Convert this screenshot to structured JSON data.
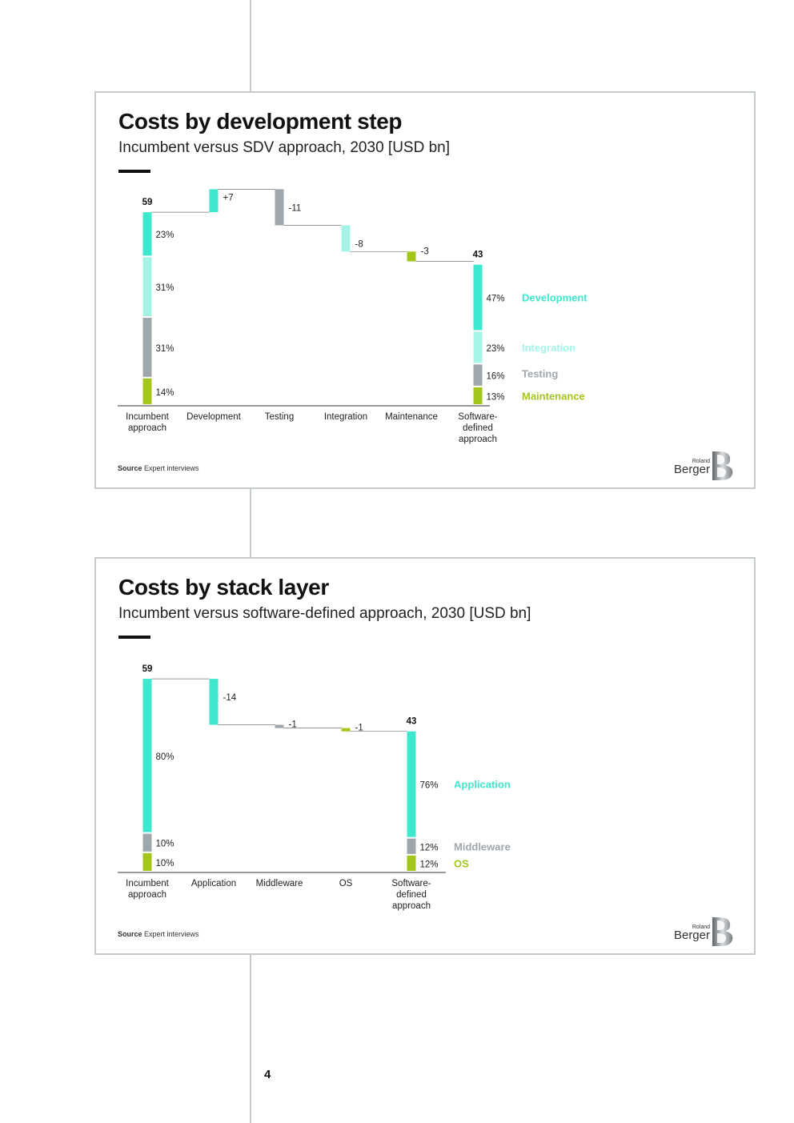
{
  "page": {
    "number": "4"
  },
  "charts": [
    {
      "title": "Costs by development step",
      "subtitle": "Incumbent versus SDV approach, 2030 [USD bn]",
      "source_label": "Source",
      "source_text": "Expert interviews",
      "logo": {
        "line1": "Roland",
        "line2": "Berger"
      }
    },
    {
      "title": "Costs by stack layer",
      "subtitle": "Incumbent versus software-defined approach, 2030 [USD bn]",
      "source_label": "Source",
      "source_text": "Expert interviews",
      "logo": {
        "line1": "Roland",
        "line2": "Berger"
      }
    }
  ],
  "chart_data": [
    {
      "type": "bar",
      "subtype": "waterfall",
      "title": "Costs by development step",
      "subtitle": "Incumbent versus SDV approach, 2030 [USD bn]",
      "ylim": [
        0,
        65
      ],
      "grid": false,
      "legend_position": "right",
      "categories": [
        "Incumbent approach",
        "Development",
        "Testing",
        "Integration",
        "Maintenance",
        "Software-defined approach"
      ],
      "category_labels": [
        [
          "Incumbent",
          "approach"
        ],
        [
          "Development"
        ],
        [
          "Testing"
        ],
        [
          "Integration"
        ],
        [
          "Maintenance"
        ],
        [
          "Software-",
          "defined",
          "approach"
        ]
      ],
      "totals": [
        {
          "category": "Incumbent approach",
          "value": 59,
          "label": "59",
          "segments": [
            {
              "series": "Development",
              "share": 23,
              "label": "23%"
            },
            {
              "series": "Integration",
              "share": 31,
              "label": "31%"
            },
            {
              "series": "Testing",
              "share": 31,
              "label": "31%"
            },
            {
              "series": "Maintenance",
              "share": 14,
              "label": "14%"
            }
          ]
        },
        {
          "category": "Software-defined approach",
          "value": 43,
          "label": "43",
          "segments": [
            {
              "series": "Development",
              "share": 47,
              "label": "47%"
            },
            {
              "series": "Integration",
              "share": 23,
              "label": "23%"
            },
            {
              "series": "Testing",
              "share": 16,
              "label": "16%"
            },
            {
              "series": "Maintenance",
              "share": 13,
              "label": "13%"
            }
          ]
        }
      ],
      "deltas": [
        {
          "category": "Development",
          "series": "Development",
          "value": 7,
          "label": "+7"
        },
        {
          "category": "Testing",
          "series": "Testing",
          "value": -11,
          "label": "-11"
        },
        {
          "category": "Integration",
          "series": "Integration",
          "value": -8,
          "label": "-8"
        },
        {
          "category": "Maintenance",
          "series": "Maintenance",
          "value": -3,
          "label": "-3"
        }
      ],
      "series": [
        {
          "name": "Development",
          "color": "#3ee8cf",
          "legend_color": "#3ee8cf"
        },
        {
          "name": "Integration",
          "color": "#a6f3e8",
          "legend_color": "#a6f3e8"
        },
        {
          "name": "Testing",
          "color": "#9ea7ac",
          "legend_color": "#9ea7ac"
        },
        {
          "name": "Maintenance",
          "color": "#a2c61c",
          "legend_color": "#a2c61c"
        }
      ]
    },
    {
      "type": "bar",
      "subtype": "waterfall",
      "title": "Costs by stack layer",
      "subtitle": "Incumbent versus software-defined approach, 2030 [USD bn]",
      "ylim": [
        0,
        65
      ],
      "grid": false,
      "legend_position": "right",
      "categories": [
        "Incumbent approach",
        "Application",
        "Middleware",
        "OS",
        "Software-defined approach"
      ],
      "category_labels": [
        [
          "Incumbent",
          "approach"
        ],
        [
          "Application"
        ],
        [
          "Middleware"
        ],
        [
          "OS"
        ],
        [
          "Software-",
          "defined",
          "approach"
        ]
      ],
      "totals": [
        {
          "category": "Incumbent approach",
          "value": 59,
          "label": "59",
          "segments": [
            {
              "series": "Application",
              "share": 80,
              "label": "80%"
            },
            {
              "series": "Middleware",
              "share": 10,
              "label": "10%"
            },
            {
              "series": "OS",
              "share": 10,
              "label": "10%"
            }
          ]
        },
        {
          "category": "Software-defined approach",
          "value": 43,
          "label": "43",
          "segments": [
            {
              "series": "Application",
              "share": 76,
              "label": "76%"
            },
            {
              "series": "Middleware",
              "share": 12,
              "label": "12%"
            },
            {
              "series": "OS",
              "share": 12,
              "label": "12%"
            }
          ]
        }
      ],
      "deltas": [
        {
          "category": "Application",
          "series": "Application",
          "value": -14,
          "label": "-14"
        },
        {
          "category": "Middleware",
          "series": "Middleware",
          "value": -1,
          "label": "-1"
        },
        {
          "category": "OS",
          "series": "OS",
          "value": -1,
          "label": "-1"
        }
      ],
      "series": [
        {
          "name": "Application",
          "color": "#3ee8cf",
          "legend_color": "#3ee8cf"
        },
        {
          "name": "Middleware",
          "color": "#9ea7ac",
          "legend_color": "#9ea7ac"
        },
        {
          "name": "OS",
          "color": "#a2c61c",
          "legend_color": "#a2c61c"
        }
      ]
    }
  ]
}
